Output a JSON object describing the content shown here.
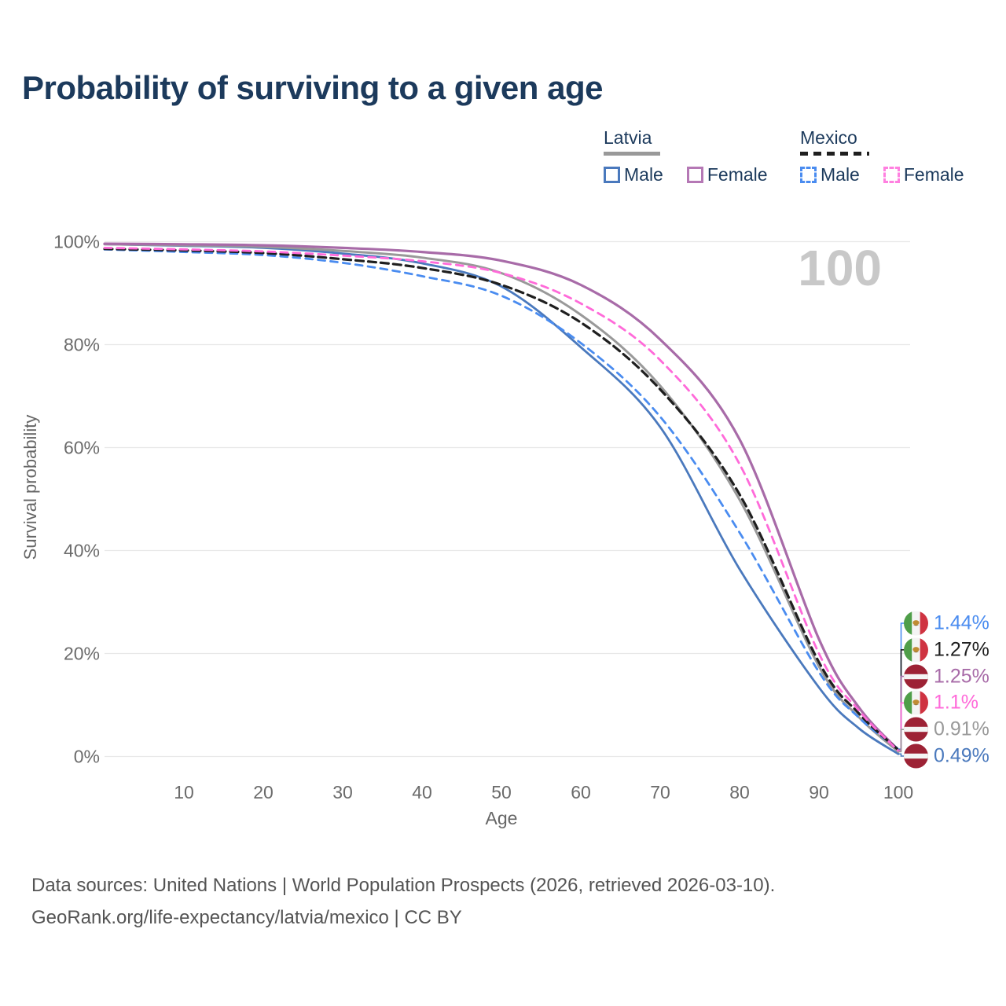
{
  "title": "Probability of surviving to a given age",
  "legend": {
    "groups": [
      {
        "label": "Latvia",
        "line_style": "solid",
        "line_color": "#999999",
        "entries": [
          {
            "label": "Male",
            "color": "#4a79bd",
            "dashed": false
          },
          {
            "label": "Female",
            "color": "#b578b5",
            "dashed": false
          }
        ]
      },
      {
        "label": "Mexico",
        "line_style": "dashed",
        "line_color": "#1f1f1f",
        "entries": [
          {
            "label": "Male",
            "color": "#4a8cf0",
            "dashed": true
          },
          {
            "label": "Female",
            "color": "#ff80e0",
            "dashed": true
          }
        ]
      }
    ]
  },
  "chart_data": {
    "type": "line",
    "title": "Probability of surviving to a given age",
    "xlabel": "Age",
    "ylabel": "Survival probability",
    "watermark": "100",
    "grid": "horizontal",
    "xlim": [
      0,
      100
    ],
    "ylim": [
      0,
      100
    ],
    "x_ticks": [
      10,
      20,
      30,
      40,
      50,
      60,
      70,
      80,
      90,
      100
    ],
    "y_ticks": [
      "0%",
      "20%",
      "40%",
      "60%",
      "80%",
      "100%"
    ],
    "series": [
      {
        "name": "Latvia Male",
        "country": "Latvia",
        "sex": "male",
        "color": "#4a79bd",
        "dash": "solid",
        "width": 2.8,
        "flag": "lv",
        "end_label": "0.49%",
        "points": [
          [
            0,
            99.5
          ],
          [
            10,
            99.2
          ],
          [
            20,
            98.8
          ],
          [
            30,
            97.7
          ],
          [
            40,
            95.8
          ],
          [
            50,
            91.3
          ],
          [
            60,
            79.5
          ],
          [
            70,
            64.0
          ],
          [
            80,
            36.4
          ],
          [
            90,
            13.4
          ],
          [
            95,
            5.5
          ],
          [
            100,
            0.49
          ]
        ]
      },
      {
        "name": "Latvia Total",
        "country": "Latvia",
        "sex": "total",
        "color": "#999999",
        "dash": "solid",
        "width": 3.0,
        "flag": "lv",
        "end_label": "0.91%",
        "points": [
          [
            0,
            99.5
          ],
          [
            10,
            99.3
          ],
          [
            20,
            99.0
          ],
          [
            30,
            98.2
          ],
          [
            40,
            96.9
          ],
          [
            50,
            93.9
          ],
          [
            60,
            85.8
          ],
          [
            70,
            72.0
          ],
          [
            80,
            49.9
          ],
          [
            90,
            17.5
          ],
          [
            95,
            7.7
          ],
          [
            100,
            0.91
          ]
        ]
      },
      {
        "name": "Latvia Female",
        "country": "Latvia",
        "sex": "female",
        "color": "#a86ba8",
        "dash": "solid",
        "width": 3.2,
        "flag": "lv",
        "end_label": "1.25%",
        "points": [
          [
            0,
            99.6
          ],
          [
            10,
            99.5
          ],
          [
            20,
            99.3
          ],
          [
            30,
            98.8
          ],
          [
            40,
            98.0
          ],
          [
            50,
            96.3
          ],
          [
            60,
            91.6
          ],
          [
            70,
            81.0
          ],
          [
            80,
            61.6
          ],
          [
            90,
            22.8
          ],
          [
            95,
            9.6
          ],
          [
            100,
            1.25
          ]
        ]
      },
      {
        "name": "Mexico Male",
        "country": "Mexico",
        "sex": "male",
        "color": "#4a8cf0",
        "dash": "9 7",
        "width": 2.8,
        "flag": "mx",
        "end_label": "1.44%",
        "points": [
          [
            0,
            98.5
          ],
          [
            10,
            98.0
          ],
          [
            20,
            97.4
          ],
          [
            30,
            95.9
          ],
          [
            40,
            93.3
          ],
          [
            50,
            89.5
          ],
          [
            60,
            80.3
          ],
          [
            70,
            66.0
          ],
          [
            80,
            43.5
          ],
          [
            90,
            16.4
          ],
          [
            95,
            7.6
          ],
          [
            100,
            1.44
          ]
        ]
      },
      {
        "name": "Mexico Total",
        "country": "Mexico",
        "sex": "total",
        "color": "#1f1f1f",
        "dash": "10 6",
        "width": 3.2,
        "flag": "mx",
        "end_label": "1.27%",
        "points": [
          [
            0,
            98.6
          ],
          [
            10,
            98.3
          ],
          [
            20,
            97.8
          ],
          [
            30,
            96.6
          ],
          [
            40,
            94.9
          ],
          [
            50,
            91.6
          ],
          [
            60,
            84.3
          ],
          [
            70,
            71.3
          ],
          [
            80,
            50.9
          ],
          [
            90,
            18.3
          ],
          [
            95,
            8.4
          ],
          [
            100,
            1.27
          ]
        ]
      },
      {
        "name": "Mexico Female",
        "country": "Mexico",
        "sex": "female",
        "color": "#ff6ad9",
        "dash": "9 7",
        "width": 2.8,
        "flag": "mx",
        "end_label": "1.1%",
        "points": [
          [
            0,
            98.8
          ],
          [
            10,
            98.5
          ],
          [
            20,
            98.1
          ],
          [
            30,
            97.3
          ],
          [
            40,
            96.2
          ],
          [
            50,
            93.9
          ],
          [
            60,
            88.0
          ],
          [
            70,
            77.0
          ],
          [
            80,
            56.8
          ],
          [
            90,
            20.0
          ],
          [
            95,
            9.0
          ],
          [
            100,
            1.1
          ]
        ]
      }
    ],
    "end_label_order": [
      3,
      4,
      2,
      5,
      1,
      0
    ],
    "legend_position": "top-right"
  },
  "footer": {
    "line1": "Data sources: United Nations | World Population Prospects (2026, retrieved 2026-03-10).",
    "line2": "GeoRank.org/life-expectancy/latvia/mexico | CC BY"
  }
}
